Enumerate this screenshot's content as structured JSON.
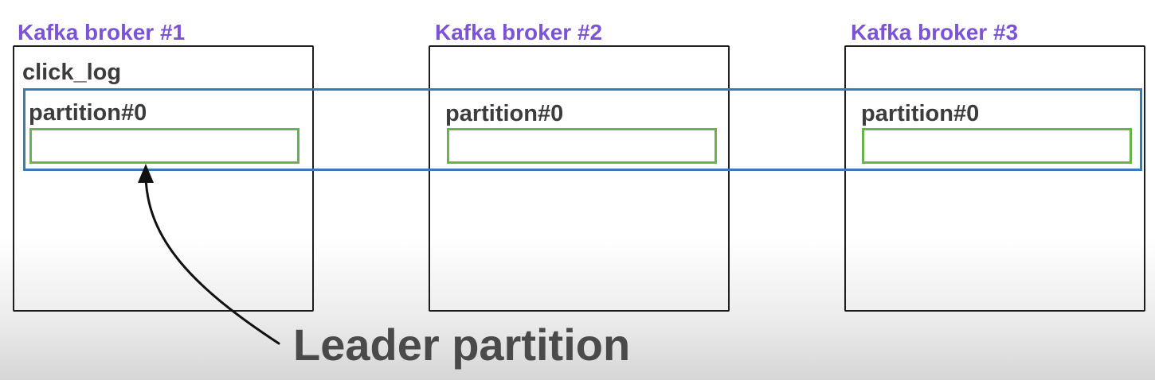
{
  "brokers": [
    {
      "title": "Kafka broker #1",
      "partition_label": "partition#0"
    },
    {
      "title": "Kafka broker #2",
      "partition_label": "partition#0"
    },
    {
      "title": "Kafka broker #3",
      "partition_label": "partition#0"
    }
  ],
  "topic": {
    "label": "click_log"
  },
  "annotation": {
    "label": "Leader partition"
  },
  "colors": {
    "broker_title": "#7b53d8",
    "topic_outline": "#3f79b4",
    "partition_outline": "#6ab24a",
    "box_outline": "#1e1e1e",
    "text": "#3c3c3c"
  }
}
